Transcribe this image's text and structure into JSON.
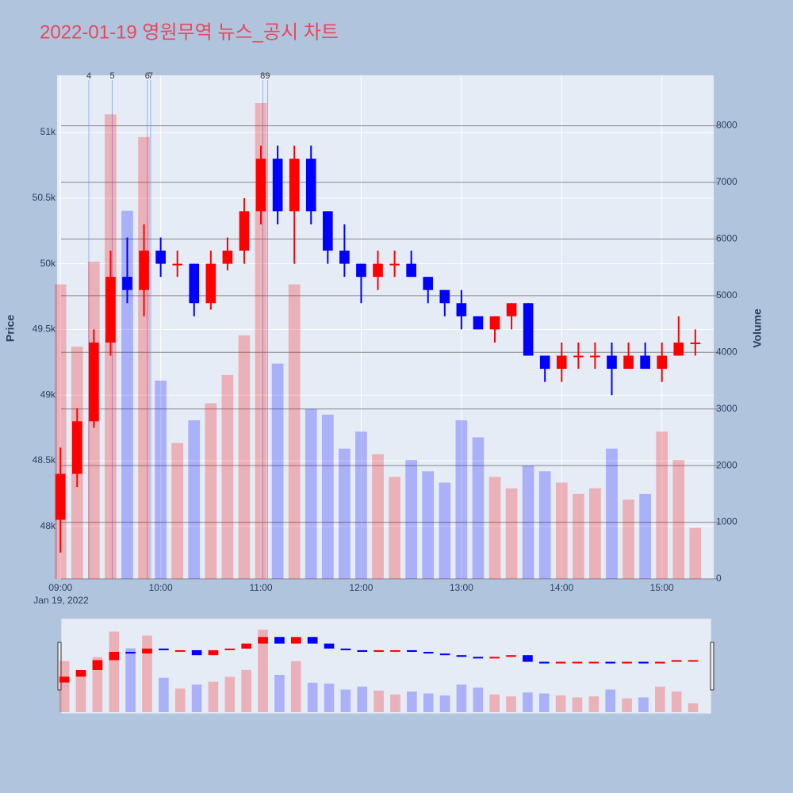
{
  "chart_data": {
    "type": "candlestick",
    "title": "2022-01-19 영원무역 뉴스_공시 차트",
    "y_label": "Price",
    "y2_label": "Volume",
    "x_date_label": "Jan 19, 2022",
    "x": [
      "09:00",
      "09:10",
      "09:20",
      "09:30",
      "09:40",
      "09:50",
      "10:00",
      "10:10",
      "10:20",
      "10:30",
      "10:40",
      "10:50",
      "11:00",
      "11:10",
      "11:20",
      "11:30",
      "11:40",
      "11:50",
      "12:00",
      "12:10",
      "12:20",
      "12:30",
      "12:40",
      "12:50",
      "13:00",
      "13:10",
      "13:20",
      "13:30",
      "13:40",
      "13:50",
      "14:00",
      "14:10",
      "14:20",
      "14:30",
      "14:40",
      "14:50",
      "15:00",
      "15:10",
      "15:20"
    ],
    "open": [
      48050,
      48400,
      48800,
      49400,
      49900,
      49800,
      50100,
      50000,
      50000,
      49700,
      50000,
      50100,
      50400,
      50800,
      50400,
      50800,
      50400,
      50100,
      50000,
      49900,
      50000,
      50000,
      49900,
      49800,
      49700,
      49600,
      49500,
      49600,
      49700,
      49300,
      49200,
      49300,
      49300,
      49300,
      49200,
      49300,
      49200,
      49300,
      49400
    ],
    "high": [
      48600,
      48900,
      49500,
      50100,
      50200,
      50300,
      50200,
      50100,
      50000,
      50100,
      50200,
      50500,
      50900,
      50900,
      50900,
      50900,
      50400,
      50300,
      50000,
      50100,
      50100,
      50100,
      49900,
      49800,
      49800,
      49600,
      49600,
      49700,
      49700,
      49300,
      49400,
      49400,
      49400,
      49400,
      49400,
      49400,
      49400,
      49600,
      49500
    ],
    "low": [
      47800,
      48300,
      48750,
      49300,
      49700,
      49600,
      49900,
      49900,
      49600,
      49650,
      49950,
      50000,
      50300,
      50300,
      50000,
      50300,
      50000,
      49900,
      49700,
      49800,
      49900,
      49900,
      49700,
      49600,
      49500,
      49500,
      49400,
      49500,
      49300,
      49100,
      49100,
      49200,
      49200,
      49000,
      49200,
      49200,
      49100,
      49300,
      49300
    ],
    "close": [
      48400,
      48800,
      49400,
      49900,
      49800,
      50100,
      50000,
      50000,
      49700,
      50000,
      50100,
      50400,
      50800,
      50400,
      50800,
      50400,
      50100,
      50000,
      49900,
      50000,
      50000,
      49900,
      49800,
      49700,
      49600,
      49500,
      49600,
      49700,
      49300,
      49200,
      49300,
      49300,
      49300,
      49200,
      49300,
      49200,
      49300,
      49400,
      49400
    ],
    "volume": [
      5200,
      4100,
      5600,
      8200,
      6500,
      7800,
      3500,
      2400,
      2800,
      3100,
      3600,
      4300,
      8400,
      3800,
      5200,
      3000,
      2900,
      2300,
      2600,
      2200,
      1800,
      2100,
      1900,
      1700,
      2800,
      2500,
      1800,
      1600,
      2000,
      1900,
      1700,
      1500,
      1600,
      2300,
      1400,
      1500,
      2600,
      2100,
      900
    ],
    "up_color": "#ff0000",
    "down_color": "#0000ff",
    "xlim": [
      "08:58",
      "15:31"
    ],
    "xticks": [
      "09:00",
      "10:00",
      "11:00",
      "12:00",
      "13:00",
      "14:00",
      "15:00"
    ],
    "ylim": [
      47600,
      51435
    ],
    "yticks": [
      {
        "value": 48000,
        "label": "48k"
      },
      {
        "value": 48500,
        "label": "48.5k"
      },
      {
        "value": 49000,
        "label": "49k"
      },
      {
        "value": 49500,
        "label": "49.5k"
      },
      {
        "value": 50000,
        "label": "50k"
      },
      {
        "value": 50500,
        "label": "50.5k"
      },
      {
        "value": 51000,
        "label": "51k"
      }
    ],
    "y2lim": [
      0,
      8890
    ],
    "y2ticks": [
      0,
      1000,
      2000,
      3000,
      4000,
      5000,
      6000,
      7000,
      8000
    ],
    "annotations": [
      {
        "x": "09:17",
        "label": "4"
      },
      {
        "x": "09:31",
        "label": "5"
      },
      {
        "x": "09:52",
        "label": "6"
      },
      {
        "x": "09:54",
        "label": "7"
      },
      {
        "x": "11:01",
        "label": "8"
      },
      {
        "x": "11:04",
        "label": "9"
      }
    ],
    "grid": true
  }
}
